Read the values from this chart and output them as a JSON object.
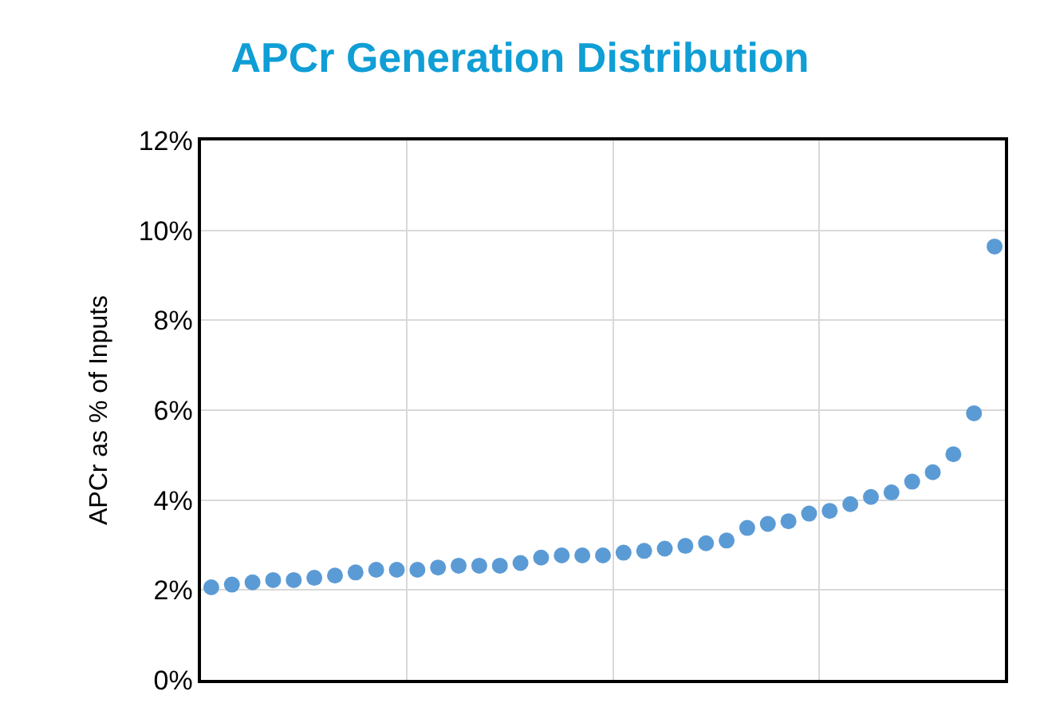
{
  "chart_data": {
    "type": "scatter",
    "title": "APCr Generation Distribution",
    "ylabel": "APCr as % of Inputs",
    "categories": [
      null,
      null,
      null,
      null,
      null,
      null,
      null,
      null,
      null,
      null,
      null,
      null,
      null,
      null,
      null,
      null,
      null,
      null,
      null,
      null,
      null,
      null,
      null,
      null,
      null,
      null,
      null,
      null,
      null,
      null,
      null,
      null,
      null,
      null,
      null,
      null,
      null,
      null,
      null
    ],
    "series": [
      {
        "color": "#5b9bd5",
        "values": [
          2.06,
          2.12,
          2.17,
          2.22,
          2.22,
          2.27,
          2.32,
          2.39,
          2.45,
          2.45,
          2.45,
          2.5,
          2.54,
          2.54,
          2.54,
          2.6,
          2.72,
          2.77,
          2.77,
          2.77,
          2.83,
          2.87,
          2.92,
          2.98,
          3.04,
          3.1,
          3.38,
          3.47,
          3.53,
          3.7,
          3.76,
          3.91,
          4.07,
          4.17,
          4.41,
          4.62,
          5.02,
          5.93,
          9.64
        ]
      }
    ],
    "ylim": [
      0,
      12
    ],
    "yticks": [
      {
        "value": 0,
        "label": "0%"
      },
      {
        "value": 2,
        "label": "2%"
      },
      {
        "value": 4,
        "label": "4%"
      },
      {
        "value": 6,
        "label": "6%"
      },
      {
        "value": 8,
        "label": "8%"
      },
      {
        "value": 10,
        "label": "10%"
      },
      {
        "value": 12,
        "label": "12%"
      }
    ],
    "grid": true,
    "legend": false,
    "marker": "circle",
    "tick_labels": "y"
  }
}
